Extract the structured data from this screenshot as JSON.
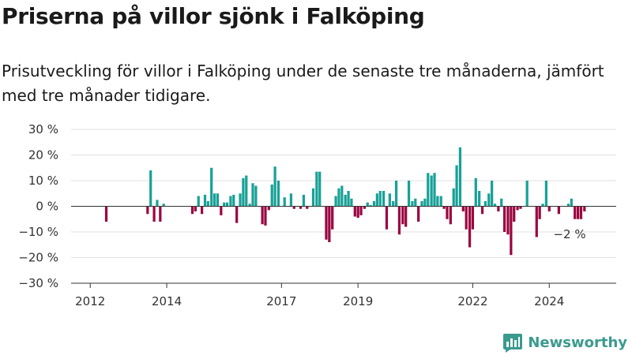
{
  "header": {
    "title": "Priserna på villor sjönk i Falköping",
    "subtitle": "Prisutveckling för villor i Falköping under de senaste tre månaderna, jämfört med tre månader tidigare."
  },
  "branding": {
    "logo_text": "Newsworthy"
  },
  "colors": {
    "positive": "#18a197",
    "negative": "#9a0640",
    "axis": "#333333",
    "grid": "#e1e1e1",
    "brand": "#3a9a8e"
  },
  "chart_data": {
    "type": "bar",
    "title": "",
    "xlabel": "",
    "ylabel": "",
    "y_ticks": [
      30,
      20,
      10,
      0,
      -10,
      -20,
      -30
    ],
    "y_tick_labels": [
      "30 %",
      "20 %",
      "10 %",
      "0 %",
      "−10 %",
      "−20 %",
      "−30 %"
    ],
    "ylim": [
      -30,
      30
    ],
    "x_ticks": [
      2012,
      2014,
      2017,
      2019,
      2022,
      2024
    ],
    "xlim": [
      2011.5,
      2025.75
    ],
    "grid": true,
    "annotation": {
      "text": "−2 %",
      "x": 2024.75,
      "y": -2
    },
    "bars": [
      {
        "x": 2012.42,
        "y": -6
      },
      {
        "x": 2013.5,
        "y": -3
      },
      {
        "x": 2013.58,
        "y": 14
      },
      {
        "x": 2013.67,
        "y": -6
      },
      {
        "x": 2013.75,
        "y": 2.5
      },
      {
        "x": 2013.83,
        "y": -6
      },
      {
        "x": 2013.92,
        "y": 1
      },
      {
        "x": 2014.67,
        "y": -3
      },
      {
        "x": 2014.75,
        "y": -2
      },
      {
        "x": 2014.83,
        "y": 4
      },
      {
        "x": 2014.92,
        "y": -3
      },
      {
        "x": 2015.0,
        "y": 4.5
      },
      {
        "x": 2015.08,
        "y": 2
      },
      {
        "x": 2015.17,
        "y": 15
      },
      {
        "x": 2015.25,
        "y": 5
      },
      {
        "x": 2015.33,
        "y": 5
      },
      {
        "x": 2015.42,
        "y": -3.5
      },
      {
        "x": 2015.5,
        "y": 1.5
      },
      {
        "x": 2015.58,
        "y": 1.5
      },
      {
        "x": 2015.67,
        "y": 4
      },
      {
        "x": 2015.75,
        "y": 4.5
      },
      {
        "x": 2015.83,
        "y": -6.5
      },
      {
        "x": 2015.92,
        "y": 5
      },
      {
        "x": 2016.0,
        "y": 11
      },
      {
        "x": 2016.08,
        "y": 12
      },
      {
        "x": 2016.17,
        "y": 1
      },
      {
        "x": 2016.25,
        "y": 9
      },
      {
        "x": 2016.33,
        "y": 8
      },
      {
        "x": 2016.5,
        "y": -7
      },
      {
        "x": 2016.58,
        "y": -7.5
      },
      {
        "x": 2016.67,
        "y": -1.5
      },
      {
        "x": 2016.75,
        "y": 8.5
      },
      {
        "x": 2016.83,
        "y": 15.5
      },
      {
        "x": 2016.92,
        "y": 10
      },
      {
        "x": 2017.08,
        "y": 3.5
      },
      {
        "x": 2017.25,
        "y": 5
      },
      {
        "x": 2017.33,
        "y": -1
      },
      {
        "x": 2017.5,
        "y": -1
      },
      {
        "x": 2017.58,
        "y": 4.5
      },
      {
        "x": 2017.67,
        "y": -1
      },
      {
        "x": 2017.83,
        "y": 7
      },
      {
        "x": 2017.92,
        "y": 13.5
      },
      {
        "x": 2018.0,
        "y": 13.5
      },
      {
        "x": 2018.17,
        "y": -13
      },
      {
        "x": 2018.25,
        "y": -14
      },
      {
        "x": 2018.33,
        "y": -9
      },
      {
        "x": 2018.42,
        "y": 4
      },
      {
        "x": 2018.5,
        "y": 7
      },
      {
        "x": 2018.58,
        "y": 8
      },
      {
        "x": 2018.67,
        "y": 4.5
      },
      {
        "x": 2018.75,
        "y": 6
      },
      {
        "x": 2018.83,
        "y": 3
      },
      {
        "x": 2018.92,
        "y": -4
      },
      {
        "x": 2019.0,
        "y": -4.5
      },
      {
        "x": 2019.08,
        "y": -3.5
      },
      {
        "x": 2019.17,
        "y": -1
      },
      {
        "x": 2019.25,
        "y": 1.5
      },
      {
        "x": 2019.33,
        "y": 0.5
      },
      {
        "x": 2019.42,
        "y": 2
      },
      {
        "x": 2019.5,
        "y": 5
      },
      {
        "x": 2019.58,
        "y": 6
      },
      {
        "x": 2019.67,
        "y": 6
      },
      {
        "x": 2019.75,
        "y": -9
      },
      {
        "x": 2019.83,
        "y": 5
      },
      {
        "x": 2019.92,
        "y": 2
      },
      {
        "x": 2020.0,
        "y": 10
      },
      {
        "x": 2020.08,
        "y": -11
      },
      {
        "x": 2020.17,
        "y": -7
      },
      {
        "x": 2020.25,
        "y": -8
      },
      {
        "x": 2020.33,
        "y": 10
      },
      {
        "x": 2020.42,
        "y": 2
      },
      {
        "x": 2020.5,
        "y": 3
      },
      {
        "x": 2020.58,
        "y": -6
      },
      {
        "x": 2020.67,
        "y": 2
      },
      {
        "x": 2020.75,
        "y": 3
      },
      {
        "x": 2020.83,
        "y": 13
      },
      {
        "x": 2020.92,
        "y": 12
      },
      {
        "x": 2021.0,
        "y": 13
      },
      {
        "x": 2021.08,
        "y": 4
      },
      {
        "x": 2021.17,
        "y": 4
      },
      {
        "x": 2021.25,
        "y": -1
      },
      {
        "x": 2021.33,
        "y": -5
      },
      {
        "x": 2021.42,
        "y": -7
      },
      {
        "x": 2021.5,
        "y": 7
      },
      {
        "x": 2021.58,
        "y": 16
      },
      {
        "x": 2021.67,
        "y": 23
      },
      {
        "x": 2021.75,
        "y": -2
      },
      {
        "x": 2021.83,
        "y": -9
      },
      {
        "x": 2021.92,
        "y": -16
      },
      {
        "x": 2022.0,
        "y": -9
      },
      {
        "x": 2022.08,
        "y": 11
      },
      {
        "x": 2022.17,
        "y": 6
      },
      {
        "x": 2022.25,
        "y": -3
      },
      {
        "x": 2022.33,
        "y": 2
      },
      {
        "x": 2022.42,
        "y": 5
      },
      {
        "x": 2022.5,
        "y": 10
      },
      {
        "x": 2022.58,
        "y": 1
      },
      {
        "x": 2022.67,
        "y": -2
      },
      {
        "x": 2022.75,
        "y": 3
      },
      {
        "x": 2022.83,
        "y": -10
      },
      {
        "x": 2022.92,
        "y": -11
      },
      {
        "x": 2023.0,
        "y": -19
      },
      {
        "x": 2023.08,
        "y": -6
      },
      {
        "x": 2023.17,
        "y": -1.5
      },
      {
        "x": 2023.25,
        "y": -1
      },
      {
        "x": 2023.42,
        "y": 10
      },
      {
        "x": 2023.67,
        "y": -12
      },
      {
        "x": 2023.75,
        "y": -5
      },
      {
        "x": 2023.83,
        "y": 1
      },
      {
        "x": 2023.92,
        "y": 10
      },
      {
        "x": 2024.0,
        "y": -2
      },
      {
        "x": 2024.25,
        "y": -3
      },
      {
        "x": 2024.5,
        "y": 1
      },
      {
        "x": 2024.58,
        "y": 3
      },
      {
        "x": 2024.67,
        "y": -5
      },
      {
        "x": 2024.75,
        "y": -5
      },
      {
        "x": 2024.83,
        "y": -5
      },
      {
        "x": 2024.92,
        "y": -2
      }
    ]
  }
}
